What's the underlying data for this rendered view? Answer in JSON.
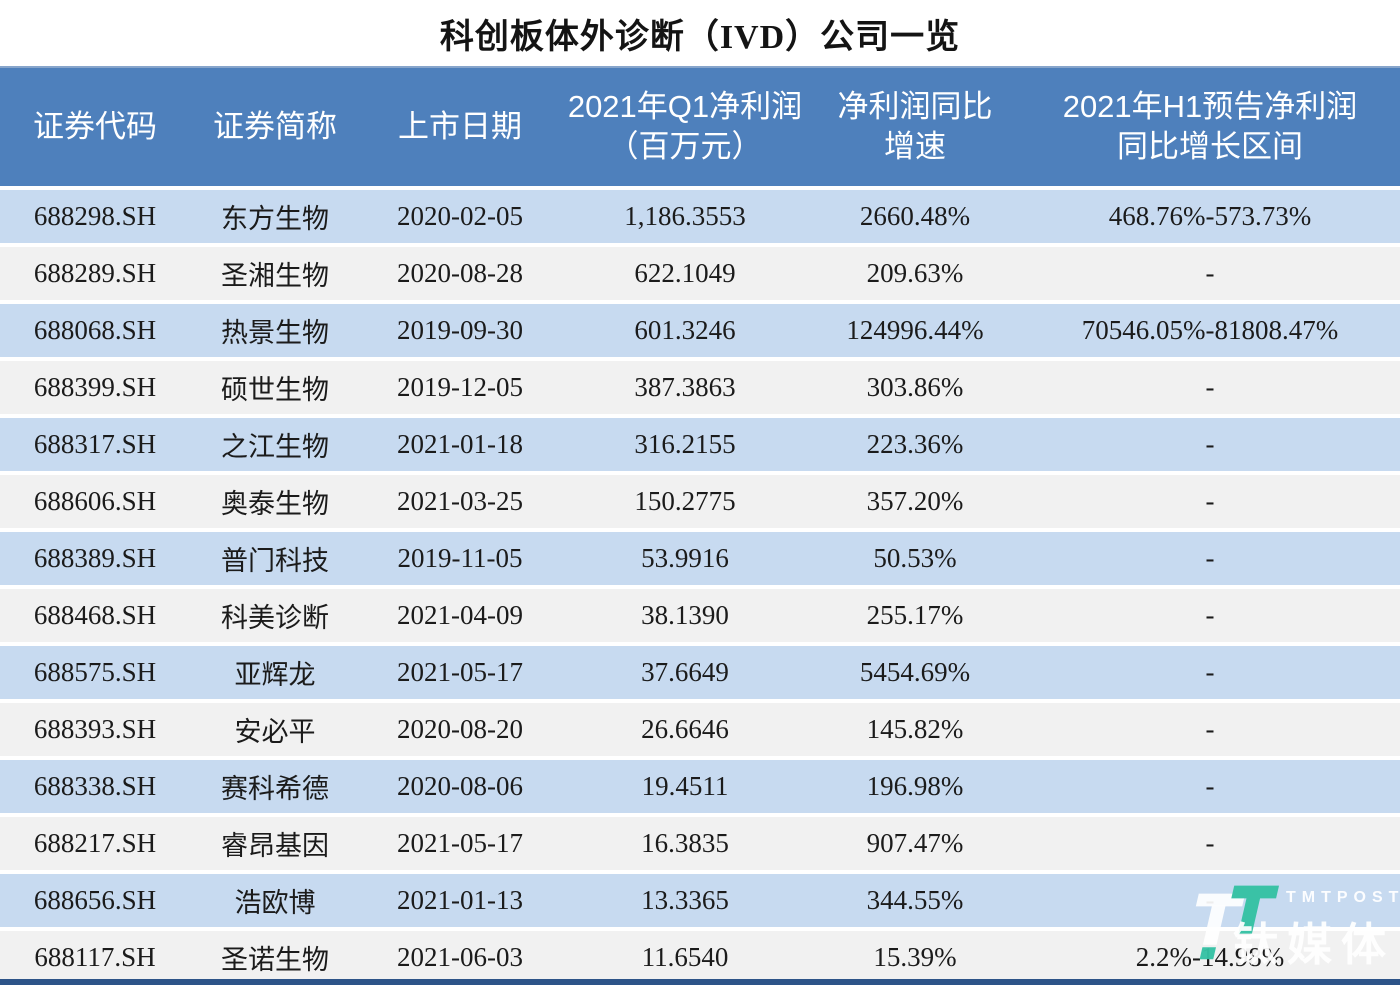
{
  "title": "科创板体外诊断（IVD）公司一览",
  "colors": {
    "header_bg": "#4E80BC",
    "row_blue": "#C7DAF0",
    "row_gray": "#F1F1F1",
    "bottom_bar": "#2D5488",
    "header_text": "#FFFFFF",
    "body_text": "#1B1B1B",
    "watermark_teal": "#35C2A4"
  },
  "watermark": {
    "brand": "TMTPOST",
    "brand_cn": "钛媒体"
  },
  "chart_data": {
    "type": "table",
    "title": "科创板体外诊断（IVD）公司一览",
    "columns": [
      "证券代码",
      "证券简称",
      "上市日期",
      "2021年Q1净利润（百万元）",
      "净利润同比增速",
      "2021年H1预告净利润同比增长区间"
    ],
    "columns_display": [
      "证券代码",
      "证券简称",
      "上市日期",
      "2021年Q1净利润\n（百万元）",
      "净利润同比\n增速",
      "2021年H1预告净利润\n同比增长区间"
    ],
    "rows": [
      [
        "688298.SH",
        "东方生物",
        "2020-02-05",
        "1,186.3553",
        "2660.48%",
        "468.76%-573.73%"
      ],
      [
        "688289.SH",
        "圣湘生物",
        "2020-08-28",
        "622.1049",
        "209.63%",
        "-"
      ],
      [
        "688068.SH",
        "热景生物",
        "2019-09-30",
        "601.3246",
        "124996.44%",
        "70546.05%-81808.47%"
      ],
      [
        "688399.SH",
        "硕世生物",
        "2019-12-05",
        "387.3863",
        "303.86%",
        "-"
      ],
      [
        "688317.SH",
        "之江生物",
        "2021-01-18",
        "316.2155",
        "223.36%",
        "-"
      ],
      [
        "688606.SH",
        "奥泰生物",
        "2021-03-25",
        "150.2775",
        "357.20%",
        "-"
      ],
      [
        "688389.SH",
        "普门科技",
        "2019-11-05",
        "53.9916",
        "50.53%",
        "-"
      ],
      [
        "688468.SH",
        "科美诊断",
        "2021-04-09",
        "38.1390",
        "255.17%",
        "-"
      ],
      [
        "688575.SH",
        "亚辉龙",
        "2021-05-17",
        "37.6649",
        "5454.69%",
        "-"
      ],
      [
        "688393.SH",
        "安必平",
        "2020-08-20",
        "26.6646",
        "145.82%",
        "-"
      ],
      [
        "688338.SH",
        "赛科希德",
        "2020-08-06",
        "19.4511",
        "196.98%",
        "-"
      ],
      [
        "688217.SH",
        "睿昂基因",
        "2021-05-17",
        "16.3835",
        "907.47%",
        "-"
      ],
      [
        "688656.SH",
        "浩欧博",
        "2021-01-13",
        "13.3365",
        "344.55%",
        "-"
      ],
      [
        "688117.SH",
        "圣诺生物",
        "2021-06-03",
        "11.6540",
        "15.39%",
        "2.2%-14.98%"
      ]
    ]
  }
}
